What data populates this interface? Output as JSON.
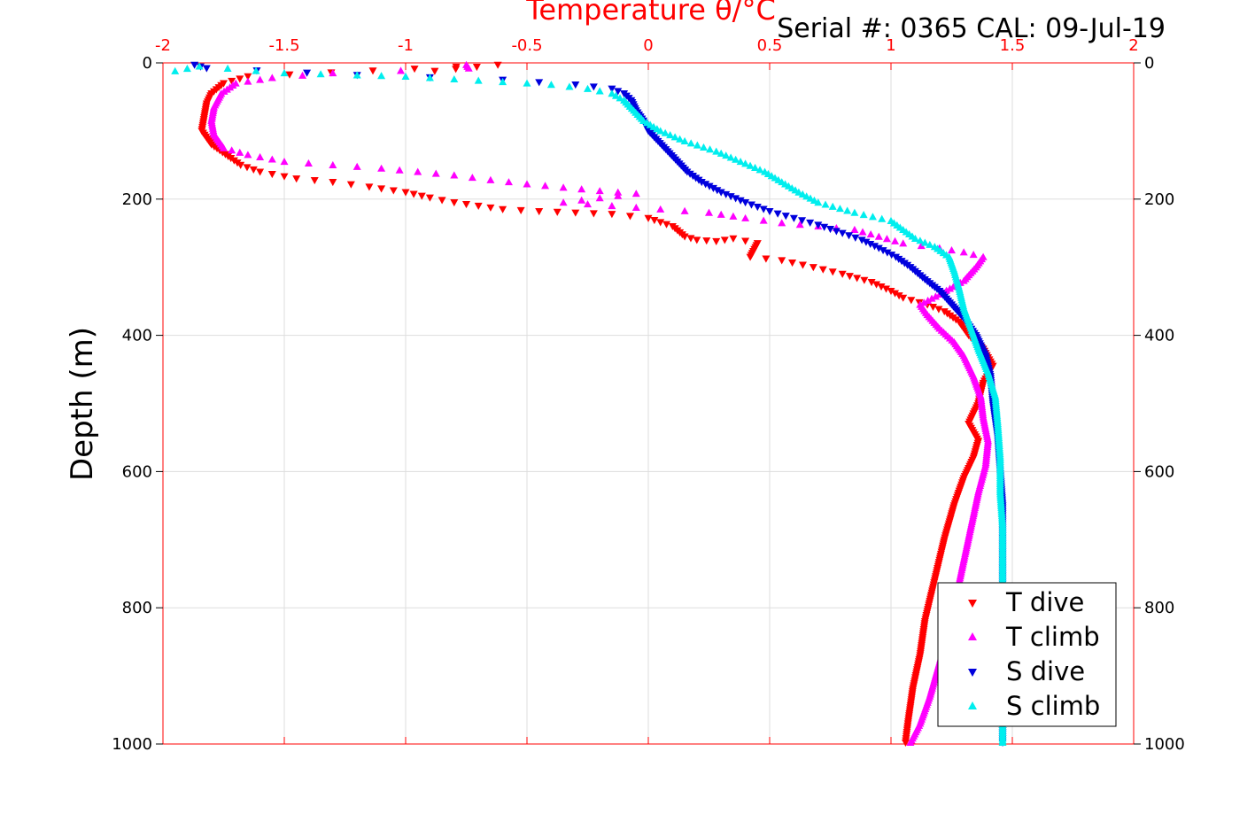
{
  "header": {
    "title": "Temperature θ/°C",
    "serial": "Serial #: 0365  CAL: 09-Jul-19"
  },
  "colors": {
    "axis_top": "#ff0000",
    "axis": "#000000",
    "grid": "#dddddd",
    "t_dive": "#ff0000",
    "t_climb": "#ff00ff",
    "s_dive": "#0000dd",
    "s_climb": "#00eeee"
  },
  "chart_data": {
    "type": "scatter",
    "title": "Temperature θ/°C",
    "xlabel": "Temperature θ/°C",
    "ylabel": "Depth (m)",
    "xlim": [
      -2,
      2
    ],
    "ylim": [
      1000,
      0
    ],
    "x_ticks": [
      "-2",
      "-1.5",
      "-1",
      "-0.5",
      "0",
      "0.5",
      "1",
      "1.5",
      "2"
    ],
    "y_ticks": [
      "0",
      "200",
      "400",
      "600",
      "800",
      "1000"
    ],
    "grid": true,
    "legend": {
      "position": "bottom-right",
      "entries": [
        "T dive",
        "T climb",
        "S dive",
        "S climb"
      ]
    },
    "series": [
      {
        "name": "T dive",
        "marker": "triangle-down",
        "color": "#ff0000",
        "points": [
          {
            "x": -0.88,
            "y": 12
          },
          {
            "x": -0.62,
            "y": 3
          },
          {
            "x": -1.65,
            "y": 20
          },
          {
            "x": -1.75,
            "y": 30
          },
          {
            "x": -1.8,
            "y": 45
          },
          {
            "x": -1.82,
            "y": 60
          },
          {
            "x": -1.83,
            "y": 80
          },
          {
            "x": -1.84,
            "y": 100
          },
          {
            "x": -1.8,
            "y": 120
          },
          {
            "x": -1.72,
            "y": 140
          },
          {
            "x": -1.68,
            "y": 150
          },
          {
            "x": -1.6,
            "y": 160
          },
          {
            "x": -1.45,
            "y": 170
          },
          {
            "x": -1.3,
            "y": 175
          },
          {
            "x": -1.15,
            "y": 182
          },
          {
            "x": -1.0,
            "y": 190
          },
          {
            "x": -0.9,
            "y": 198
          },
          {
            "x": -0.8,
            "y": 205
          },
          {
            "x": -0.7,
            "y": 210
          },
          {
            "x": -0.6,
            "y": 215
          },
          {
            "x": -0.45,
            "y": 218
          },
          {
            "x": -0.3,
            "y": 220
          },
          {
            "x": -0.15,
            "y": 222
          },
          {
            "x": 0.0,
            "y": 228
          },
          {
            "x": 0.1,
            "y": 240
          },
          {
            "x": 0.15,
            "y": 255
          },
          {
            "x": 0.2,
            "y": 260
          },
          {
            "x": 0.28,
            "y": 262
          },
          {
            "x": 0.35,
            "y": 258
          },
          {
            "x": 0.45,
            "y": 265
          },
          {
            "x": 0.42,
            "y": 285
          },
          {
            "x": 0.55,
            "y": 290
          },
          {
            "x": 0.68,
            "y": 300
          },
          {
            "x": 0.8,
            "y": 310
          },
          {
            "x": 0.92,
            "y": 322
          },
          {
            "x": 1.0,
            "y": 335
          },
          {
            "x": 1.05,
            "y": 345
          },
          {
            "x": 1.15,
            "y": 355
          },
          {
            "x": 1.22,
            "y": 365
          },
          {
            "x": 1.28,
            "y": 380
          },
          {
            "x": 1.32,
            "y": 400
          },
          {
            "x": 1.38,
            "y": 420
          },
          {
            "x": 1.42,
            "y": 445
          },
          {
            "x": 1.38,
            "y": 470
          },
          {
            "x": 1.36,
            "y": 500
          },
          {
            "x": 1.32,
            "y": 530
          },
          {
            "x": 1.36,
            "y": 555
          },
          {
            "x": 1.34,
            "y": 580
          },
          {
            "x": 1.3,
            "y": 610
          },
          {
            "x": 1.26,
            "y": 650
          },
          {
            "x": 1.22,
            "y": 700
          },
          {
            "x": 1.18,
            "y": 760
          },
          {
            "x": 1.14,
            "y": 820
          },
          {
            "x": 1.12,
            "y": 870
          },
          {
            "x": 1.09,
            "y": 920
          },
          {
            "x": 1.07,
            "y": 970
          },
          {
            "x": 1.06,
            "y": 998
          }
        ]
      },
      {
        "name": "T climb",
        "marker": "triangle-up",
        "color": "#ff00ff",
        "points": [
          {
            "x": -0.75,
            "y": 3
          },
          {
            "x": -0.74,
            "y": 8
          },
          {
            "x": -1.3,
            "y": 15
          },
          {
            "x": -1.55,
            "y": 22
          },
          {
            "x": -1.7,
            "y": 30
          },
          {
            "x": -1.76,
            "y": 45
          },
          {
            "x": -1.79,
            "y": 65
          },
          {
            "x": -1.8,
            "y": 85
          },
          {
            "x": -1.79,
            "y": 105
          },
          {
            "x": -1.75,
            "y": 125
          },
          {
            "x": -1.65,
            "y": 135
          },
          {
            "x": -1.5,
            "y": 145
          },
          {
            "x": -1.3,
            "y": 150
          },
          {
            "x": -1.1,
            "y": 155
          },
          {
            "x": -0.95,
            "y": 160
          },
          {
            "x": -0.8,
            "y": 165
          },
          {
            "x": -0.65,
            "y": 172
          },
          {
            "x": -0.5,
            "y": 178
          },
          {
            "x": -0.35,
            "y": 183
          },
          {
            "x": -0.2,
            "y": 188
          },
          {
            "x": -0.05,
            "y": 192
          },
          {
            "x": -0.35,
            "y": 205
          },
          {
            "x": -0.15,
            "y": 210
          },
          {
            "x": 0.05,
            "y": 215
          },
          {
            "x": 0.25,
            "y": 220
          },
          {
            "x": 0.4,
            "y": 228
          },
          {
            "x": 0.55,
            "y": 235
          },
          {
            "x": 0.7,
            "y": 240
          },
          {
            "x": 0.85,
            "y": 245
          },
          {
            "x": 0.95,
            "y": 255
          },
          {
            "x": 1.05,
            "y": 265
          },
          {
            "x": 1.2,
            "y": 272
          },
          {
            "x": 1.3,
            "y": 278
          },
          {
            "x": 1.38,
            "y": 285
          },
          {
            "x": 1.35,
            "y": 300
          },
          {
            "x": 1.3,
            "y": 320
          },
          {
            "x": 1.2,
            "y": 340
          },
          {
            "x": 1.12,
            "y": 355
          },
          {
            "x": 1.15,
            "y": 370
          },
          {
            "x": 1.2,
            "y": 390
          },
          {
            "x": 1.26,
            "y": 410
          },
          {
            "x": 1.3,
            "y": 430
          },
          {
            "x": 1.34,
            "y": 460
          },
          {
            "x": 1.37,
            "y": 490
          },
          {
            "x": 1.38,
            "y": 520
          },
          {
            "x": 1.4,
            "y": 555
          },
          {
            "x": 1.39,
            "y": 590
          },
          {
            "x": 1.36,
            "y": 630
          },
          {
            "x": 1.33,
            "y": 680
          },
          {
            "x": 1.3,
            "y": 730
          },
          {
            "x": 1.27,
            "y": 780
          },
          {
            "x": 1.24,
            "y": 830
          },
          {
            "x": 1.2,
            "y": 880
          },
          {
            "x": 1.16,
            "y": 930
          },
          {
            "x": 1.12,
            "y": 970
          },
          {
            "x": 1.08,
            "y": 998
          }
        ]
      },
      {
        "name": "S dive",
        "marker": "triangle-down",
        "color": "#0000dd",
        "points": [
          {
            "x": -1.87,
            "y": 3
          },
          {
            "x": -1.82,
            "y": 8
          },
          {
            "x": -1.2,
            "y": 18
          },
          {
            "x": -0.6,
            "y": 25
          },
          {
            "x": -0.3,
            "y": 32
          },
          {
            "x": -0.15,
            "y": 38
          },
          {
            "x": -0.1,
            "y": 45
          },
          {
            "x": -0.07,
            "y": 55
          },
          {
            "x": -0.05,
            "y": 70
          },
          {
            "x": -0.02,
            "y": 85
          },
          {
            "x": 0.0,
            "y": 100
          },
          {
            "x": 0.04,
            "y": 115
          },
          {
            "x": 0.08,
            "y": 130
          },
          {
            "x": 0.12,
            "y": 145
          },
          {
            "x": 0.16,
            "y": 160
          },
          {
            "x": 0.22,
            "y": 175
          },
          {
            "x": 0.3,
            "y": 190
          },
          {
            "x": 0.4,
            "y": 205
          },
          {
            "x": 0.5,
            "y": 218
          },
          {
            "x": 0.6,
            "y": 228
          },
          {
            "x": 0.7,
            "y": 238
          },
          {
            "x": 0.8,
            "y": 250
          },
          {
            "x": 0.88,
            "y": 260
          },
          {
            "x": 0.95,
            "y": 272
          },
          {
            "x": 1.02,
            "y": 285
          },
          {
            "x": 1.08,
            "y": 300
          },
          {
            "x": 1.14,
            "y": 318
          },
          {
            "x": 1.2,
            "y": 335
          },
          {
            "x": 1.25,
            "y": 355
          },
          {
            "x": 1.3,
            "y": 375
          },
          {
            "x": 1.35,
            "y": 400
          },
          {
            "x": 1.39,
            "y": 430
          },
          {
            "x": 1.41,
            "y": 460
          },
          {
            "x": 1.42,
            "y": 500
          },
          {
            "x": 1.44,
            "y": 550
          },
          {
            "x": 1.45,
            "y": 600
          },
          {
            "x": 1.46,
            "y": 650
          },
          {
            "x": 1.46,
            "y": 700
          },
          {
            "x": 1.46,
            "y": 750
          },
          {
            "x": 1.46,
            "y": 800
          },
          {
            "x": 1.46,
            "y": 850
          },
          {
            "x": 1.46,
            "y": 900
          },
          {
            "x": 1.46,
            "y": 950
          },
          {
            "x": 1.46,
            "y": 998
          }
        ]
      },
      {
        "name": "S climb",
        "marker": "triangle-up",
        "color": "#00eeee",
        "points": [
          {
            "x": -1.95,
            "y": 12
          },
          {
            "x": -1.85,
            "y": 5
          },
          {
            "x": -1.5,
            "y": 15
          },
          {
            "x": -1.2,
            "y": 18
          },
          {
            "x": -1.0,
            "y": 20
          },
          {
            "x": -0.8,
            "y": 24
          },
          {
            "x": -0.6,
            "y": 28
          },
          {
            "x": -0.4,
            "y": 32
          },
          {
            "x": -0.25,
            "y": 38
          },
          {
            "x": -0.15,
            "y": 45
          },
          {
            "x": -0.1,
            "y": 55
          },
          {
            "x": -0.06,
            "y": 70
          },
          {
            "x": -0.02,
            "y": 85
          },
          {
            "x": 0.05,
            "y": 100
          },
          {
            "x": 0.15,
            "y": 115
          },
          {
            "x": 0.28,
            "y": 130
          },
          {
            "x": 0.38,
            "y": 145
          },
          {
            "x": 0.48,
            "y": 160
          },
          {
            "x": 0.55,
            "y": 175
          },
          {
            "x": 0.62,
            "y": 190
          },
          {
            "x": 0.7,
            "y": 205
          },
          {
            "x": 0.85,
            "y": 220
          },
          {
            "x": 1.0,
            "y": 232
          },
          {
            "x": 1.05,
            "y": 245
          },
          {
            "x": 1.1,
            "y": 258
          },
          {
            "x": 1.18,
            "y": 270
          },
          {
            "x": 1.24,
            "y": 285
          },
          {
            "x": 1.26,
            "y": 305
          },
          {
            "x": 1.28,
            "y": 330
          },
          {
            "x": 1.3,
            "y": 360
          },
          {
            "x": 1.33,
            "y": 390
          },
          {
            "x": 1.36,
            "y": 420
          },
          {
            "x": 1.4,
            "y": 455
          },
          {
            "x": 1.43,
            "y": 490
          },
          {
            "x": 1.44,
            "y": 530
          },
          {
            "x": 1.45,
            "y": 580
          },
          {
            "x": 1.45,
            "y": 630
          },
          {
            "x": 1.46,
            "y": 680
          },
          {
            "x": 1.46,
            "y": 730
          },
          {
            "x": 1.46,
            "y": 780
          },
          {
            "x": 1.46,
            "y": 830
          },
          {
            "x": 1.46,
            "y": 880
          },
          {
            "x": 1.46,
            "y": 930
          },
          {
            "x": 1.46,
            "y": 975
          },
          {
            "x": 1.46,
            "y": 998
          }
        ]
      }
    ]
  }
}
